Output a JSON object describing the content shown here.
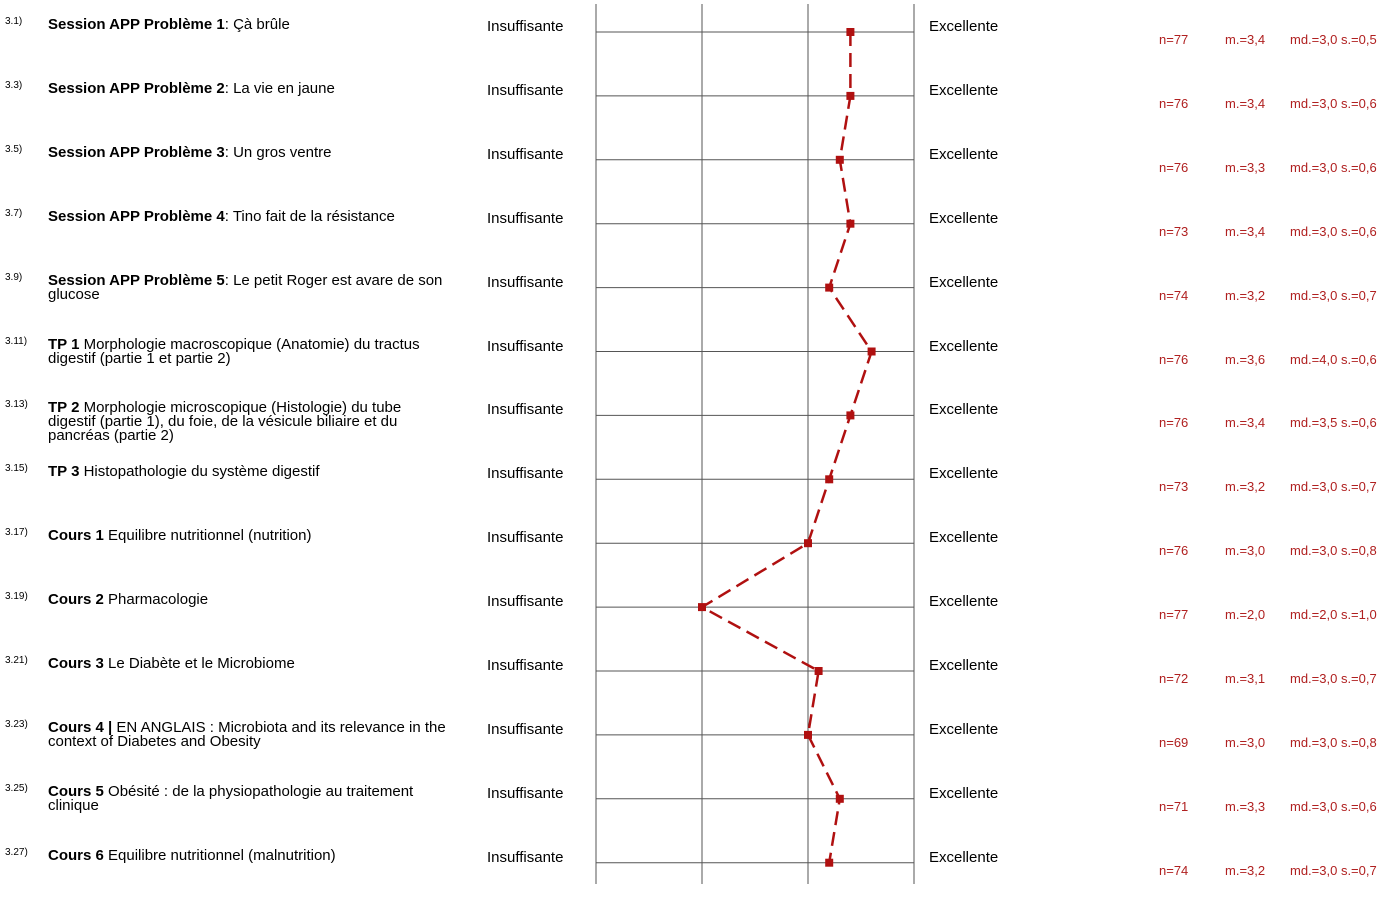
{
  "chart_data": {
    "type": "line",
    "scale_left_label": "Insuffisante",
    "scale_right_label": "Excellente",
    "xlim": [
      1,
      4
    ],
    "line_color": "#b01010",
    "stats_color": "#b02020",
    "items": [
      {
        "num": "3.1)",
        "bold": "Session APP Problème 1",
        "text": ": Çà brûle",
        "n": "n=77",
        "m": "m.=3,4",
        "md": "md.=3,0",
        "s": "s.=0,5",
        "value": 3.4
      },
      {
        "num": "3.3)",
        "bold": "Session APP Problème 2",
        "text": ": La vie en jaune",
        "n": "n=76",
        "m": "m.=3,4",
        "md": "md.=3,0",
        "s": "s.=0,6",
        "value": 3.4
      },
      {
        "num": "3.5)",
        "bold": "Session APP Problème 3",
        "text": ": Un gros ventre",
        "n": "n=76",
        "m": "m.=3,3",
        "md": "md.=3,0",
        "s": "s.=0,6",
        "value": 3.3
      },
      {
        "num": "3.7)",
        "bold": "Session APP Problème 4",
        "text": ": Tino fait de la résistance",
        "n": "n=73",
        "m": "m.=3,4",
        "md": "md.=3,0",
        "s": "s.=0,6",
        "value": 3.4
      },
      {
        "num": "3.9)",
        "bold": "Session APP Problème 5",
        "text": ": Le petit Roger est avare de son glucose",
        "n": "n=74",
        "m": "m.=3,2",
        "md": "md.=3,0",
        "s": "s.=0,7",
        "value": 3.2
      },
      {
        "num": "3.11)",
        "bold": "TP 1",
        "text": " Morphologie macroscopique (Anatomie) du tractus digestif (partie 1 et partie 2)",
        "n": "n=76",
        "m": "m.=3,6",
        "md": "md.=4,0",
        "s": "s.=0,6",
        "value": 3.6
      },
      {
        "num": "3.13)",
        "bold": "TP 2",
        "text": " Morphologie microscopique (Histologie) du tube digestif (partie 1), du foie, de la vésicule biliaire et du pancréas (partie 2)",
        "n": "n=76",
        "m": "m.=3,4",
        "md": "md.=3,5",
        "s": "s.=0,6",
        "value": 3.4
      },
      {
        "num": "3.15)",
        "bold": "TP 3",
        "text": " Histopathologie du système digestif",
        "n": "n=73",
        "m": "m.=3,2",
        "md": "md.=3,0",
        "s": "s.=0,7",
        "value": 3.2
      },
      {
        "num": "3.17)",
        "bold": "Cours 1",
        "text": " Equilibre nutritionnel (nutrition)",
        "n": "n=76",
        "m": "m.=3,0",
        "md": "md.=3,0",
        "s": "s.=0,8",
        "value": 3.0
      },
      {
        "num": "3.19)",
        "bold": "Cours 2",
        "text": " Pharmacologie",
        "n": "n=77",
        "m": "m.=2,0",
        "md": "md.=2,0",
        "s": "s.=1,0",
        "value": 2.0
      },
      {
        "num": "3.21)",
        "bold": "Cours 3",
        "text": " Le Diabète et le Microbiome",
        "n": "n=72",
        "m": "m.=3,1",
        "md": "md.=3,0",
        "s": "s.=0,7",
        "value": 3.1
      },
      {
        "num": "3.23)",
        "bold": "Cours 4 |",
        "text": " EN ANGLAIS : Microbiota and its relevance in the context of Diabetes and Obesity",
        "n": "n=69",
        "m": "m.=3,0",
        "md": "md.=3,0",
        "s": "s.=0,8",
        "value": 3.0
      },
      {
        "num": "3.25)",
        "bold": "Cours 5",
        "text": " Obésité : de la physiopathologie au traitement clinique",
        "n": "n=71",
        "m": "m.=3,3",
        "md": "md.=3,0",
        "s": "s.=0,6",
        "value": 3.3
      },
      {
        "num": "3.27)",
        "bold": "Cours 6",
        "text": " Equilibre nutritionnel (malnutrition)",
        "n": "n=74",
        "m": "m.=3,2",
        "md": "md.=3,0",
        "s": "s.=0,7",
        "value": 3.2
      }
    ]
  }
}
